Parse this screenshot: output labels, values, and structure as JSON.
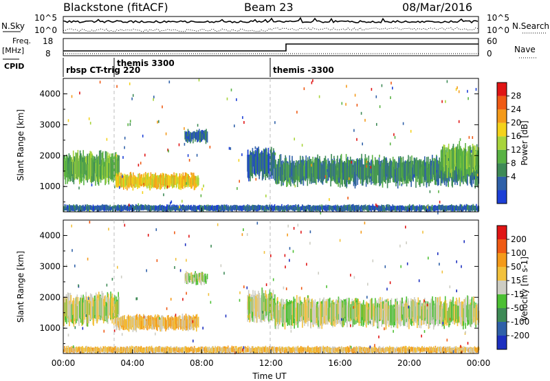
{
  "header": {
    "title": "Blackstone (fitACF)",
    "beam": "Beam 23",
    "date": "08/Mar/2016"
  },
  "top_panels": {
    "nsky_label": "N.Sky",
    "nsearch_label": "N.Search",
    "nsky_ticks": [
      "10^5",
      "10^0"
    ],
    "freq_label": "Freq.",
    "freq_unit": "[MHz]",
    "freq_ticks": [
      "18",
      "8"
    ],
    "nave_label": "Nave",
    "nave_ticks": [
      "60",
      "0"
    ],
    "cpid_label": "CPID",
    "cpid_entries": [
      {
        "label": "rbsp CT-trig 220",
        "start_hour": 0.0
      },
      {
        "label": "themis 3300",
        "start_hour": 2.7
      },
      {
        "label": "themis -3300",
        "start_hour": 12.0
      }
    ]
  },
  "colors": {
    "power": [
      "#1c3fd6",
      "#2f60a8",
      "#3e8a56",
      "#59b243",
      "#a8d43b",
      "#f4d21a",
      "#f49a1a",
      "#ef5a14",
      "#e01414"
    ],
    "velocity": [
      "#1c2fbf",
      "#2f60a8",
      "#3e8a56",
      "#4cc033",
      "#cdcdc3",
      "#f2c13c",
      "#f49a1a",
      "#ef5a14",
      "#e01414"
    ]
  },
  "chart_data": [
    {
      "type": "heatmap",
      "name": "power",
      "ylabel": "Slant Range [km]",
      "colorbar_label": "Power [dB]",
      "colorbar_ticks": [
        "28",
        "24",
        "20",
        "16",
        "12",
        "8",
        "4"
      ],
      "xlim": [
        0,
        24
      ],
      "ylim": [
        180,
        4500
      ],
      "ytick_labels": [
        "1000",
        "2000",
        "3000",
        "4000"
      ],
      "xtick_labels": [
        "00:00",
        "04:00",
        "08:00",
        "12:00",
        "16:00",
        "20:00",
        "00:00"
      ],
      "bands": [
        {
          "t": [
            0.0,
            3.2
          ],
          "r": [
            1050,
            2150
          ],
          "level": 3
        },
        {
          "t": [
            3.0,
            7.8
          ],
          "r": [
            900,
            1450
          ],
          "level": 5
        },
        {
          "t": [
            7.0,
            8.3
          ],
          "r": [
            2400,
            2850
          ],
          "level": 1
        },
        {
          "t": [
            10.6,
            12.2
          ],
          "r": [
            1200,
            2300
          ],
          "level": 1
        },
        {
          "t": [
            12.2,
            24.0
          ],
          "r": [
            1000,
            2000
          ],
          "level": 2
        },
        {
          "t": [
            21.8,
            24.0
          ],
          "r": [
            1300,
            2400
          ],
          "level": 3
        },
        {
          "t": [
            0.0,
            24.0
          ],
          "r": [
            180,
            420
          ],
          "level": 1
        }
      ]
    },
    {
      "type": "heatmap",
      "name": "velocity",
      "xlabel": "Time UT",
      "ylabel": "Slant Range [km]",
      "colorbar_label": "Velocity [m s-1]",
      "colorbar_ticks": [
        "200",
        "100",
        "50",
        "15",
        "-15",
        "-50",
        "-100",
        "-200"
      ],
      "xlim": [
        0,
        24
      ],
      "ylim": [
        180,
        4500
      ],
      "ytick_labels": [
        "1000",
        "2000",
        "3000",
        "4000"
      ],
      "xtick_labels": [
        "00:00",
        "04:00",
        "08:00",
        "12:00",
        "16:00",
        "20:00",
        "00:00"
      ],
      "bands": [
        {
          "t": [
            0.0,
            3.2
          ],
          "r": [
            1050,
            2150
          ],
          "level": 4
        },
        {
          "t": [
            3.0,
            7.8
          ],
          "r": [
            900,
            1450
          ],
          "level": 5
        },
        {
          "t": [
            7.0,
            8.3
          ],
          "r": [
            2400,
            2850
          ],
          "level": 4
        },
        {
          "t": [
            10.6,
            12.2
          ],
          "r": [
            1200,
            2300
          ],
          "level": 4
        },
        {
          "t": [
            12.2,
            24.0
          ],
          "r": [
            1000,
            2000
          ],
          "level": 4
        },
        {
          "t": [
            0.0,
            24.0
          ],
          "r": [
            180,
            420
          ],
          "level": 5
        }
      ]
    }
  ]
}
